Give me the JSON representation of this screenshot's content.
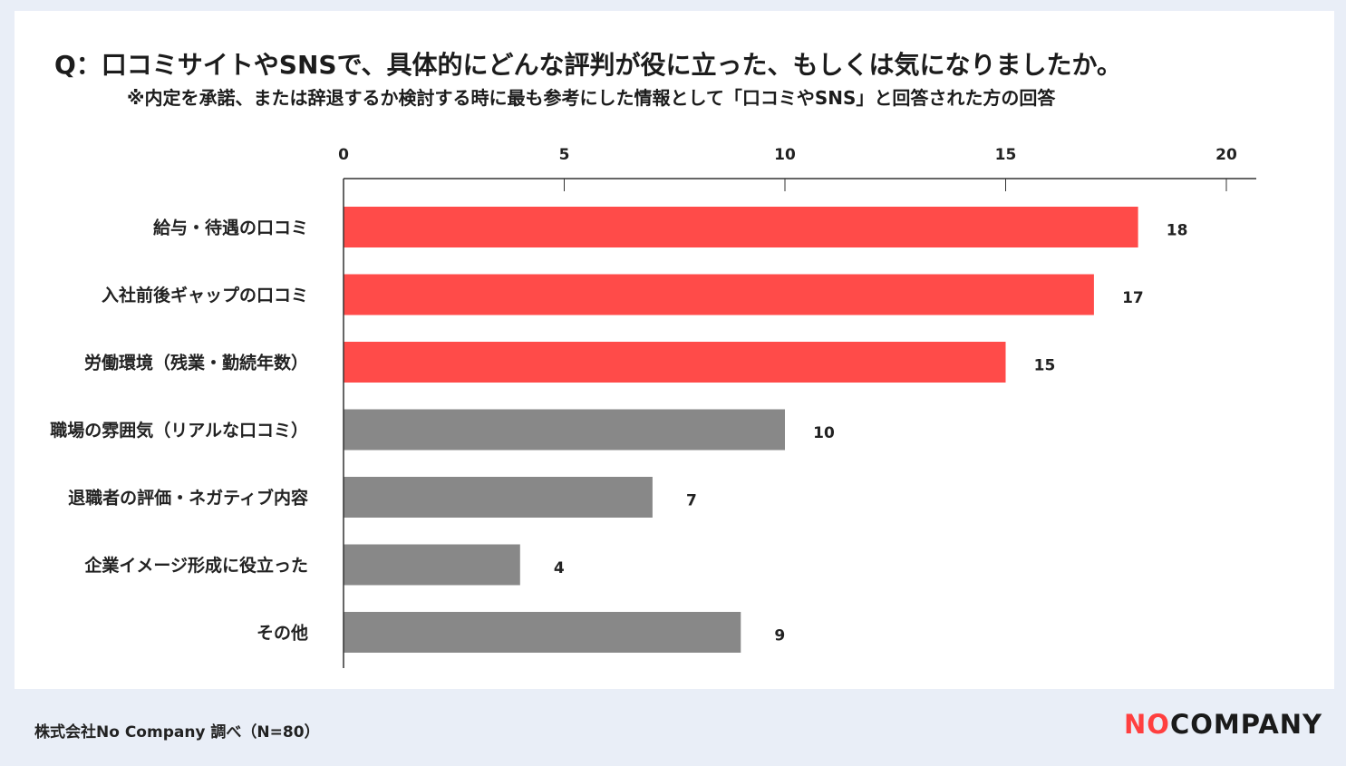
{
  "title": "Q：口コミサイトやSNSで、具体的にどんな評判が役に立った、もしくは気になりましたか。",
  "subtitle": "※内定を承諾、または辞退するか検討する時に最も参考にした情報として「口コミやSNS」と回答された方の回答",
  "footer": {
    "source": "株式会社No Company 調べ（N=80）",
    "logo_no": "NO",
    "logo_rest": "COMPANY"
  },
  "colors": {
    "highlight": "#ff4b49",
    "normal": "#888888",
    "axis": "#333333"
  },
  "chart_data": {
    "type": "bar",
    "orientation": "horizontal",
    "categories": [
      "給与・待遇の口コミ",
      "入社前後ギャップの口コミ",
      "労働環境（残業・勤続年数）",
      "職場の雰囲気（リアルな口コミ）",
      "退職者の評価・ネガティブ内容",
      "企業イメージ形成に役立った",
      "その他"
    ],
    "values": [
      18,
      17,
      15,
      10,
      7,
      4,
      9
    ],
    "highlight": [
      true,
      true,
      true,
      false,
      false,
      false,
      false
    ],
    "xlim": [
      0,
      21.5
    ],
    "xticks": [
      0,
      5,
      10,
      15,
      20
    ],
    "axis_position": "top",
    "grid": false,
    "data_labels": true
  }
}
